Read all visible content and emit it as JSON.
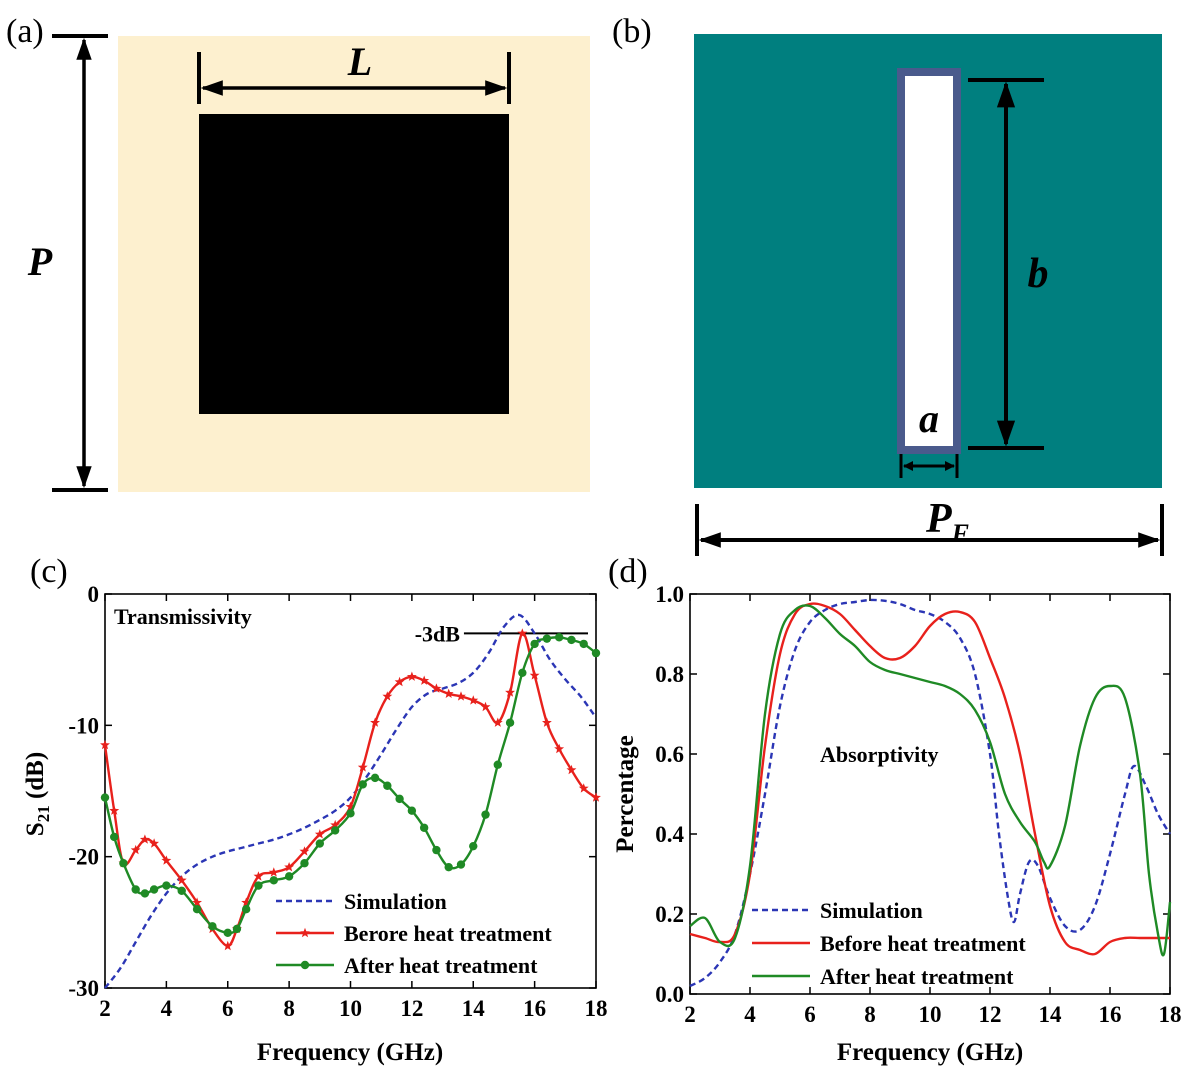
{
  "panel_a": {
    "label": "(a)",
    "dim_L": "L",
    "dim_P": "P",
    "colors": {
      "background": "#fdf0cf",
      "square": "#000000"
    }
  },
  "panel_b": {
    "label": "(b)",
    "dim_b": "b",
    "dim_a": "a",
    "dim_PF": "P",
    "dim_PF_sub": "F",
    "colors": {
      "background": "#007f7f",
      "slot_border": "#4a5a8c",
      "slot_fill": "#ffffff"
    }
  },
  "chart_data": [
    {
      "panel_label": "(c)",
      "type": "line",
      "title": "Transmissivity",
      "xlabel": "Frequency (GHz)",
      "ylabel": "S",
      "ylabel_sub": "21",
      "ylabel_unit": " (dB)",
      "xlim": [
        2,
        18
      ],
      "ylim": [
        -30,
        0
      ],
      "xticks": [
        2,
        4,
        6,
        8,
        10,
        12,
        14,
        16,
        18
      ],
      "yticks": [
        0,
        -10,
        -20,
        -30
      ],
      "annotation": {
        "text": "-3dB",
        "y": -3,
        "x_range": [
          15,
          18
        ]
      },
      "legend": [
        "Simulation",
        "Berore heat treatment",
        "After heat treatment"
      ],
      "legend_position": "lower-right",
      "series": [
        {
          "name": "Simulation",
          "color": "#2b36b5",
          "style": "dashed",
          "marker": "none",
          "x": [
            2,
            2.5,
            3,
            3.5,
            4,
            4.5,
            5,
            5.5,
            6,
            6.5,
            7,
            7.5,
            8,
            8.5,
            9,
            9.5,
            10,
            10.5,
            11,
            11.5,
            12,
            12.5,
            13,
            13.5,
            14,
            14.5,
            15,
            15.5,
            16,
            16.5,
            17,
            17.5,
            18
          ],
          "y": [
            -30,
            -28.5,
            -26.5,
            -24.5,
            -22.8,
            -21.5,
            -20.6,
            -20,
            -19.6,
            -19.3,
            -19,
            -18.7,
            -18.3,
            -17.8,
            -17.2,
            -16.5,
            -15.5,
            -14,
            -12.2,
            -10.3,
            -8.6,
            -7.6,
            -7.2,
            -6.8,
            -6,
            -4.5,
            -2.5,
            -1.6,
            -3,
            -5,
            -6.5,
            -7.8,
            -9.4
          ]
        },
        {
          "name": "Berore heat treatment",
          "color": "#e8211c",
          "style": "solid",
          "marker": "star",
          "x": [
            2,
            2.3,
            2.6,
            3,
            3.3,
            3.6,
            4,
            4.5,
            5,
            5.5,
            6,
            6.3,
            6.6,
            7,
            7.5,
            8,
            8.5,
            9,
            9.5,
            10,
            10.4,
            10.8,
            11.2,
            11.6,
            12,
            12.4,
            12.8,
            13.2,
            13.6,
            14,
            14.4,
            14.8,
            15.2,
            15.6,
            16,
            16.4,
            16.8,
            17.2,
            17.6,
            18
          ],
          "y": [
            -11.5,
            -16.5,
            -20.5,
            -19.5,
            -18.7,
            -19,
            -20.3,
            -21.8,
            -23.5,
            -25.5,
            -26.8,
            -25.5,
            -23.5,
            -21.5,
            -21.2,
            -20.8,
            -19.6,
            -18.3,
            -17.6,
            -16.2,
            -13.2,
            -9.8,
            -7.8,
            -6.7,
            -6.3,
            -6.6,
            -7.2,
            -7.6,
            -7.8,
            -8.1,
            -8.6,
            -9.8,
            -7.5,
            -3,
            -6.2,
            -9.8,
            -11.8,
            -13.4,
            -14.8,
            -15.5
          ]
        },
        {
          "name": "After heat treatment",
          "color": "#1f8a25",
          "style": "solid",
          "marker": "circle",
          "x": [
            2,
            2.3,
            2.6,
            3,
            3.3,
            3.6,
            4,
            4.5,
            5,
            5.5,
            6,
            6.3,
            6.6,
            7,
            7.5,
            8,
            8.5,
            9,
            9.5,
            10,
            10.4,
            10.8,
            11.2,
            11.6,
            12,
            12.4,
            12.8,
            13.2,
            13.6,
            14,
            14.4,
            14.8,
            15.2,
            15.6,
            16,
            16.4,
            16.8,
            17.2,
            17.6,
            18
          ],
          "y": [
            -15.5,
            -18.5,
            -20.5,
            -22.5,
            -22.8,
            -22.5,
            -22.2,
            -22.6,
            -24,
            -25.3,
            -25.8,
            -25.5,
            -24,
            -22.2,
            -21.8,
            -21.5,
            -20.5,
            -19,
            -18,
            -16.7,
            -14.5,
            -14,
            -14.6,
            -15.6,
            -16.5,
            -17.8,
            -19.5,
            -20.8,
            -20.6,
            -19.2,
            -16.8,
            -13,
            -9.8,
            -6,
            -3.8,
            -3.4,
            -3.3,
            -3.5,
            -3.8,
            -4.5
          ]
        }
      ]
    },
    {
      "panel_label": "(d)",
      "type": "line",
      "title": "Absorptivity",
      "xlabel": "Frequency (GHz)",
      "ylabel": "Percentage",
      "xlim": [
        2,
        18
      ],
      "ylim": [
        0,
        1.0
      ],
      "xticks": [
        2,
        4,
        6,
        8,
        10,
        12,
        14,
        16,
        18
      ],
      "yticks": [
        0.0,
        0.2,
        0.4,
        0.6,
        0.8,
        1.0
      ],
      "ytick_labels": [
        "0.0",
        "0.2",
        "0.4",
        "0.6",
        "0.8",
        "1.0"
      ],
      "legend": [
        "Simulation",
        "Before heat treatment",
        "After heat treatment"
      ],
      "legend_position": "lower-center",
      "series": [
        {
          "name": "Simulation",
          "color": "#2b36b5",
          "style": "dashed",
          "x": [
            2,
            2.5,
            3,
            3.5,
            4,
            4.5,
            5,
            5.5,
            6,
            6.5,
            7,
            7.5,
            8,
            8.5,
            9,
            9.5,
            10,
            10.5,
            11,
            11.5,
            12,
            12.3,
            12.6,
            12.8,
            13,
            13.3,
            13.6,
            14,
            14.5,
            15,
            15.5,
            16,
            16.5,
            16.8,
            17.2,
            17.6,
            18
          ],
          "y": [
            0.02,
            0.04,
            0.08,
            0.15,
            0.3,
            0.5,
            0.72,
            0.86,
            0.93,
            0.96,
            0.975,
            0.98,
            0.985,
            0.983,
            0.975,
            0.96,
            0.95,
            0.93,
            0.89,
            0.8,
            0.6,
            0.4,
            0.24,
            0.18,
            0.25,
            0.33,
            0.32,
            0.24,
            0.17,
            0.16,
            0.22,
            0.35,
            0.5,
            0.57,
            0.52,
            0.45,
            0.4
          ]
        },
        {
          "name": "Before heat treatment",
          "color": "#e8211c",
          "style": "solid",
          "x": [
            2,
            2.5,
            3,
            3.5,
            4,
            4.5,
            5,
            5.5,
            6,
            6.5,
            7,
            7.5,
            8,
            8.5,
            9,
            9.5,
            10,
            10.5,
            11,
            11.5,
            12,
            12.5,
            13,
            13.5,
            14,
            14.5,
            15,
            15.5,
            16,
            16.5,
            17,
            17.5,
            18
          ],
          "y": [
            0.15,
            0.14,
            0.13,
            0.15,
            0.3,
            0.62,
            0.85,
            0.95,
            0.975,
            0.97,
            0.95,
            0.91,
            0.87,
            0.84,
            0.84,
            0.87,
            0.92,
            0.95,
            0.955,
            0.93,
            0.84,
            0.74,
            0.6,
            0.4,
            0.22,
            0.13,
            0.11,
            0.1,
            0.13,
            0.14,
            0.14,
            0.14,
            0.14
          ]
        },
        {
          "name": "After heat treatment",
          "color": "#1f8a25",
          "style": "solid",
          "x": [
            2,
            2.5,
            3,
            3.5,
            4,
            4.5,
            5,
            5.5,
            6,
            6.5,
            7,
            7.5,
            8,
            8.5,
            9,
            9.5,
            10,
            10.5,
            11,
            11.5,
            12,
            12.5,
            13,
            13.5,
            13.8,
            14,
            14.5,
            15,
            15.5,
            16,
            16.5,
            17,
            17.3,
            17.6,
            17.8,
            18
          ],
          "y": [
            0.17,
            0.19,
            0.13,
            0.14,
            0.32,
            0.7,
            0.9,
            0.96,
            0.97,
            0.94,
            0.9,
            0.87,
            0.83,
            0.81,
            0.8,
            0.79,
            0.78,
            0.77,
            0.75,
            0.71,
            0.63,
            0.5,
            0.43,
            0.38,
            0.33,
            0.32,
            0.42,
            0.62,
            0.74,
            0.77,
            0.74,
            0.55,
            0.3,
            0.15,
            0.1,
            0.23
          ]
        }
      ]
    }
  ]
}
